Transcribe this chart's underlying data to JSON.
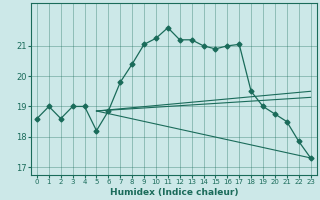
{
  "xlabel": "Humidex (Indice chaleur)",
  "background_color": "#cce8e8",
  "line_color": "#1a6b5a",
  "xlim": [
    -0.5,
    23.5
  ],
  "ylim": [
    16.75,
    22.4
  ],
  "yticks": [
    17,
    18,
    19,
    20,
    21
  ],
  "xticks": [
    0,
    1,
    2,
    3,
    4,
    5,
    6,
    7,
    8,
    9,
    10,
    11,
    12,
    13,
    14,
    15,
    16,
    17,
    18,
    19,
    20,
    21,
    22,
    23
  ],
  "main_series": {
    "x": [
      0,
      1,
      2,
      3,
      4,
      5,
      6,
      7,
      8,
      9,
      10,
      11,
      12,
      13,
      14,
      15,
      16,
      17,
      18,
      19,
      20,
      21,
      22,
      23
    ],
    "y": [
      18.6,
      19.0,
      18.6,
      19.0,
      19.0,
      18.2,
      18.85,
      19.8,
      20.4,
      21.05,
      21.25,
      21.6,
      21.2,
      21.2,
      21.0,
      20.9,
      21.0,
      21.05,
      19.5,
      19.0,
      18.75,
      18.5,
      17.85,
      17.3
    ]
  },
  "trend_lines": [
    {
      "x": [
        5,
        23
      ],
      "y": [
        18.85,
        19.5
      ]
    },
    {
      "x": [
        5,
        23
      ],
      "y": [
        18.85,
        19.3
      ]
    },
    {
      "x": [
        5,
        23
      ],
      "y": [
        18.85,
        17.3
      ]
    }
  ]
}
